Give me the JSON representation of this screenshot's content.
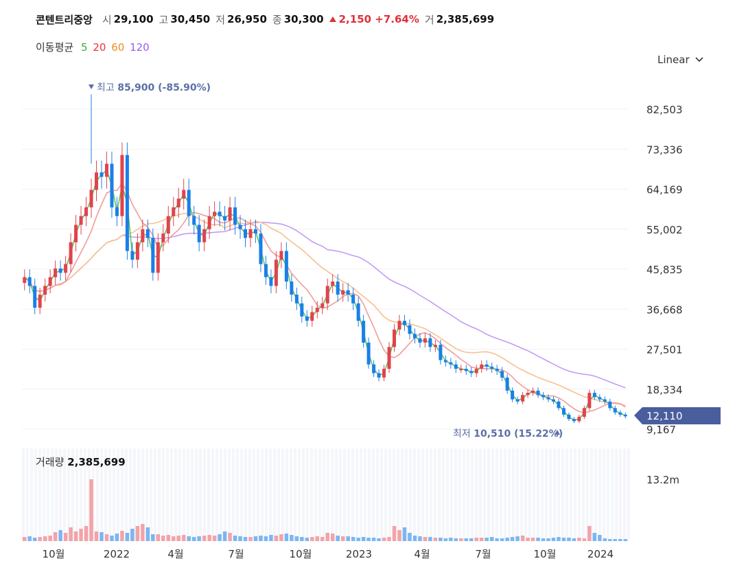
{
  "header": {
    "name": "콘텐트리중앙",
    "open_label": "시",
    "open": "29,100",
    "high_label": "고",
    "high": "30,450",
    "low_label": "저",
    "low": "26,950",
    "close_label": "종",
    "close": "30,300",
    "change": "2,150 +7.64%",
    "volume_label": "거",
    "volume": "2,385,699"
  },
  "ma_legend": {
    "label": "이동평균",
    "items": [
      {
        "period": "5",
        "color": "#3aaa35"
      },
      {
        "period": "20",
        "color": "#e8343f"
      },
      {
        "period": "60",
        "color": "#f08a24"
      },
      {
        "period": "120",
        "color": "#9b59f5"
      }
    ]
  },
  "scale_selector": {
    "value": "Linear"
  },
  "chart_data": {
    "type": "candlestick",
    "y_ticks": [
      "82,503",
      "73,336",
      "64,169",
      "55,002",
      "45,835",
      "36,668",
      "27,501",
      "18,334",
      "9,167"
    ],
    "y_tick_values": [
      82503,
      73336,
      64169,
      55002,
      45835,
      36668,
      27501,
      18334,
      9167
    ],
    "x_ticks": [
      "10월",
      "2022",
      "4월",
      "7월",
      "10월",
      "2023",
      "4월",
      "7월",
      "10월",
      "2024"
    ],
    "last_price": "12,110",
    "last_price_value": 12110,
    "max_annotation": {
      "label": "최고",
      "value": "85,900 (-85.90%)",
      "price": 85900
    },
    "min_annotation": {
      "label": "최저",
      "value": "10,510 (15.22%)",
      "price": 10510
    },
    "colors": {
      "up": "#e0434c",
      "down": "#1a7fe8",
      "ma5": "#5cc75a",
      "ma20": "#f39a9a",
      "ma60": "#f8c08f",
      "ma120": "#c39cf5"
    },
    "close_series": [
      44000,
      42000,
      37000,
      40000,
      42000,
      44000,
      46000,
      45000,
      47000,
      52000,
      56000,
      58000,
      60000,
      64000,
      68000,
      67000,
      70000,
      60000,
      58000,
      72000,
      50000,
      48000,
      52000,
      55000,
      53000,
      45000,
      52000,
      54000,
      58000,
      60000,
      62000,
      64000,
      58000,
      56000,
      52000,
      55000,
      58000,
      59000,
      58000,
      57000,
      60000,
      56000,
      55000,
      53000,
      55000,
      54000,
      47000,
      44000,
      42000,
      48000,
      50000,
      43000,
      40000,
      38000,
      35000,
      34000,
      36000,
      37000,
      38000,
      42000,
      43000,
      40000,
      41000,
      40000,
      38000,
      34000,
      29000,
      24000,
      22000,
      21000,
      23000,
      28000,
      32000,
      34000,
      33000,
      31000,
      30000,
      29000,
      30000,
      28000,
      28500,
      25000,
      24500,
      24000,
      23000,
      23000,
      22500,
      22000,
      23000,
      24000,
      23500,
      23000,
      22500,
      21000,
      18000,
      16000,
      15500,
      17000,
      17500,
      18000,
      17000,
      16500,
      16000,
      15500,
      14000,
      12500,
      11500,
      11000,
      12000,
      14000,
      17500,
      16500,
      16000,
      15500,
      14000,
      13000,
      12500,
      12110
    ],
    "volume": {
      "label": "거래량",
      "value": "2,385,699",
      "axis_label": "13.2m",
      "bars": [
        0.06,
        0.07,
        0.05,
        0.06,
        0.07,
        0.08,
        0.13,
        0.16,
        0.12,
        0.2,
        0.14,
        0.18,
        0.22,
        0.9,
        0.14,
        0.13,
        0.1,
        0.08,
        0.11,
        0.15,
        0.12,
        0.18,
        0.22,
        0.25,
        0.2,
        0.1,
        0.1,
        0.08,
        0.09,
        0.07,
        0.08,
        0.09,
        0.07,
        0.06,
        0.07,
        0.08,
        0.09,
        0.08,
        0.1,
        0.14,
        0.12,
        0.08,
        0.07,
        0.06,
        0.06,
        0.07,
        0.08,
        0.07,
        0.09,
        0.08,
        0.1,
        0.11,
        0.09,
        0.07,
        0.06,
        0.05,
        0.06,
        0.07,
        0.06,
        0.12,
        0.11,
        0.08,
        0.07,
        0.07,
        0.06,
        0.05,
        0.06,
        0.05,
        0.05,
        0.04,
        0.05,
        0.06,
        0.22,
        0.16,
        0.2,
        0.12,
        0.08,
        0.07,
        0.06,
        0.06,
        0.05,
        0.05,
        0.04,
        0.05,
        0.04,
        0.04,
        0.04,
        0.04,
        0.05,
        0.05,
        0.05,
        0.06,
        0.04,
        0.04,
        0.05,
        0.06,
        0.07,
        0.08,
        0.05,
        0.05,
        0.05,
        0.04,
        0.04,
        0.05,
        0.06,
        0.05,
        0.05,
        0.04,
        0.05,
        0.04,
        0.22,
        0.12,
        0.09,
        0.04,
        0.03,
        0.03,
        0.03,
        0.03
      ]
    }
  }
}
